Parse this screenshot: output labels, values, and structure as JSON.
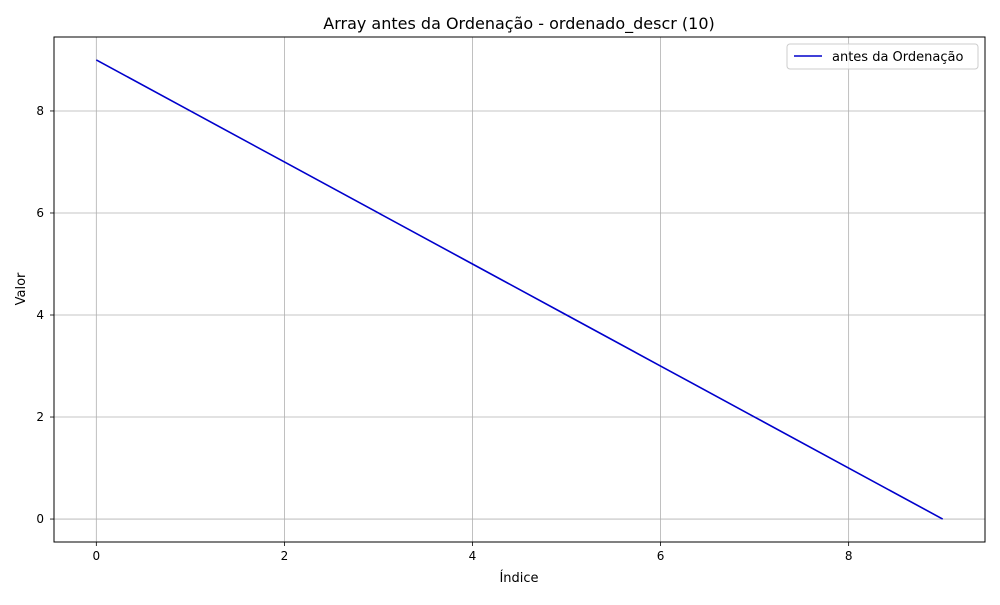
{
  "chart_data": {
    "type": "line",
    "title": "Array antes da Ordenação - ordenado_descr (10)",
    "xlabel": "Índice",
    "ylabel": "Valor",
    "x": [
      0,
      1,
      2,
      3,
      4,
      5,
      6,
      7,
      8,
      9
    ],
    "series": [
      {
        "name": "antes da Ordenação",
        "values": [
          9,
          8,
          7,
          6,
          5,
          4,
          3,
          2,
          1,
          0
        ],
        "color": "#0000cc"
      }
    ],
    "xlim": [
      -0.45,
      9.45
    ],
    "ylim": [
      -0.45,
      9.45
    ],
    "xticks": [
      0,
      2,
      4,
      6,
      8
    ],
    "yticks": [
      0,
      2,
      4,
      6,
      8
    ],
    "grid": true,
    "legend_position": "top-right"
  }
}
